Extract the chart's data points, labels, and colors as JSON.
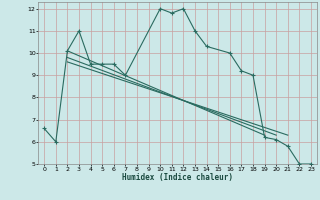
{
  "title": "",
  "xlabel": "Humidex (Indice chaleur)",
  "xlim": [
    -0.5,
    23.5
  ],
  "ylim": [
    5,
    12.3
  ],
  "yticks": [
    5,
    6,
    7,
    8,
    9,
    10,
    11,
    12
  ],
  "xticks": [
    0,
    1,
    2,
    3,
    4,
    5,
    6,
    7,
    8,
    9,
    10,
    11,
    12,
    13,
    14,
    15,
    16,
    17,
    18,
    19,
    20,
    21,
    22,
    23
  ],
  "bg_color": "#cce8e8",
  "grid_color": "#b0d0d0",
  "line_color": "#2a6b60",
  "line1_x": [
    0,
    1,
    2,
    3,
    4,
    5,
    6,
    7,
    10,
    11,
    12,
    13,
    14,
    16,
    17,
    18,
    19,
    20,
    21,
    22,
    23
  ],
  "line1_y": [
    6.6,
    6.0,
    10.1,
    11.0,
    9.5,
    9.5,
    9.5,
    9.0,
    12.0,
    11.8,
    12.0,
    11.0,
    10.3,
    10.0,
    9.2,
    9.0,
    6.2,
    6.1,
    5.8,
    5.0,
    5.0
  ],
  "line2_x": [
    2,
    19
  ],
  "line2_y": [
    10.1,
    6.3
  ],
  "line3_x": [
    2,
    20
  ],
  "line3_y": [
    9.8,
    6.3
  ],
  "line4_x": [
    2,
    21
  ],
  "line4_y": [
    9.6,
    6.3
  ],
  "figsize": [
    3.2,
    2.0
  ],
  "dpi": 100
}
